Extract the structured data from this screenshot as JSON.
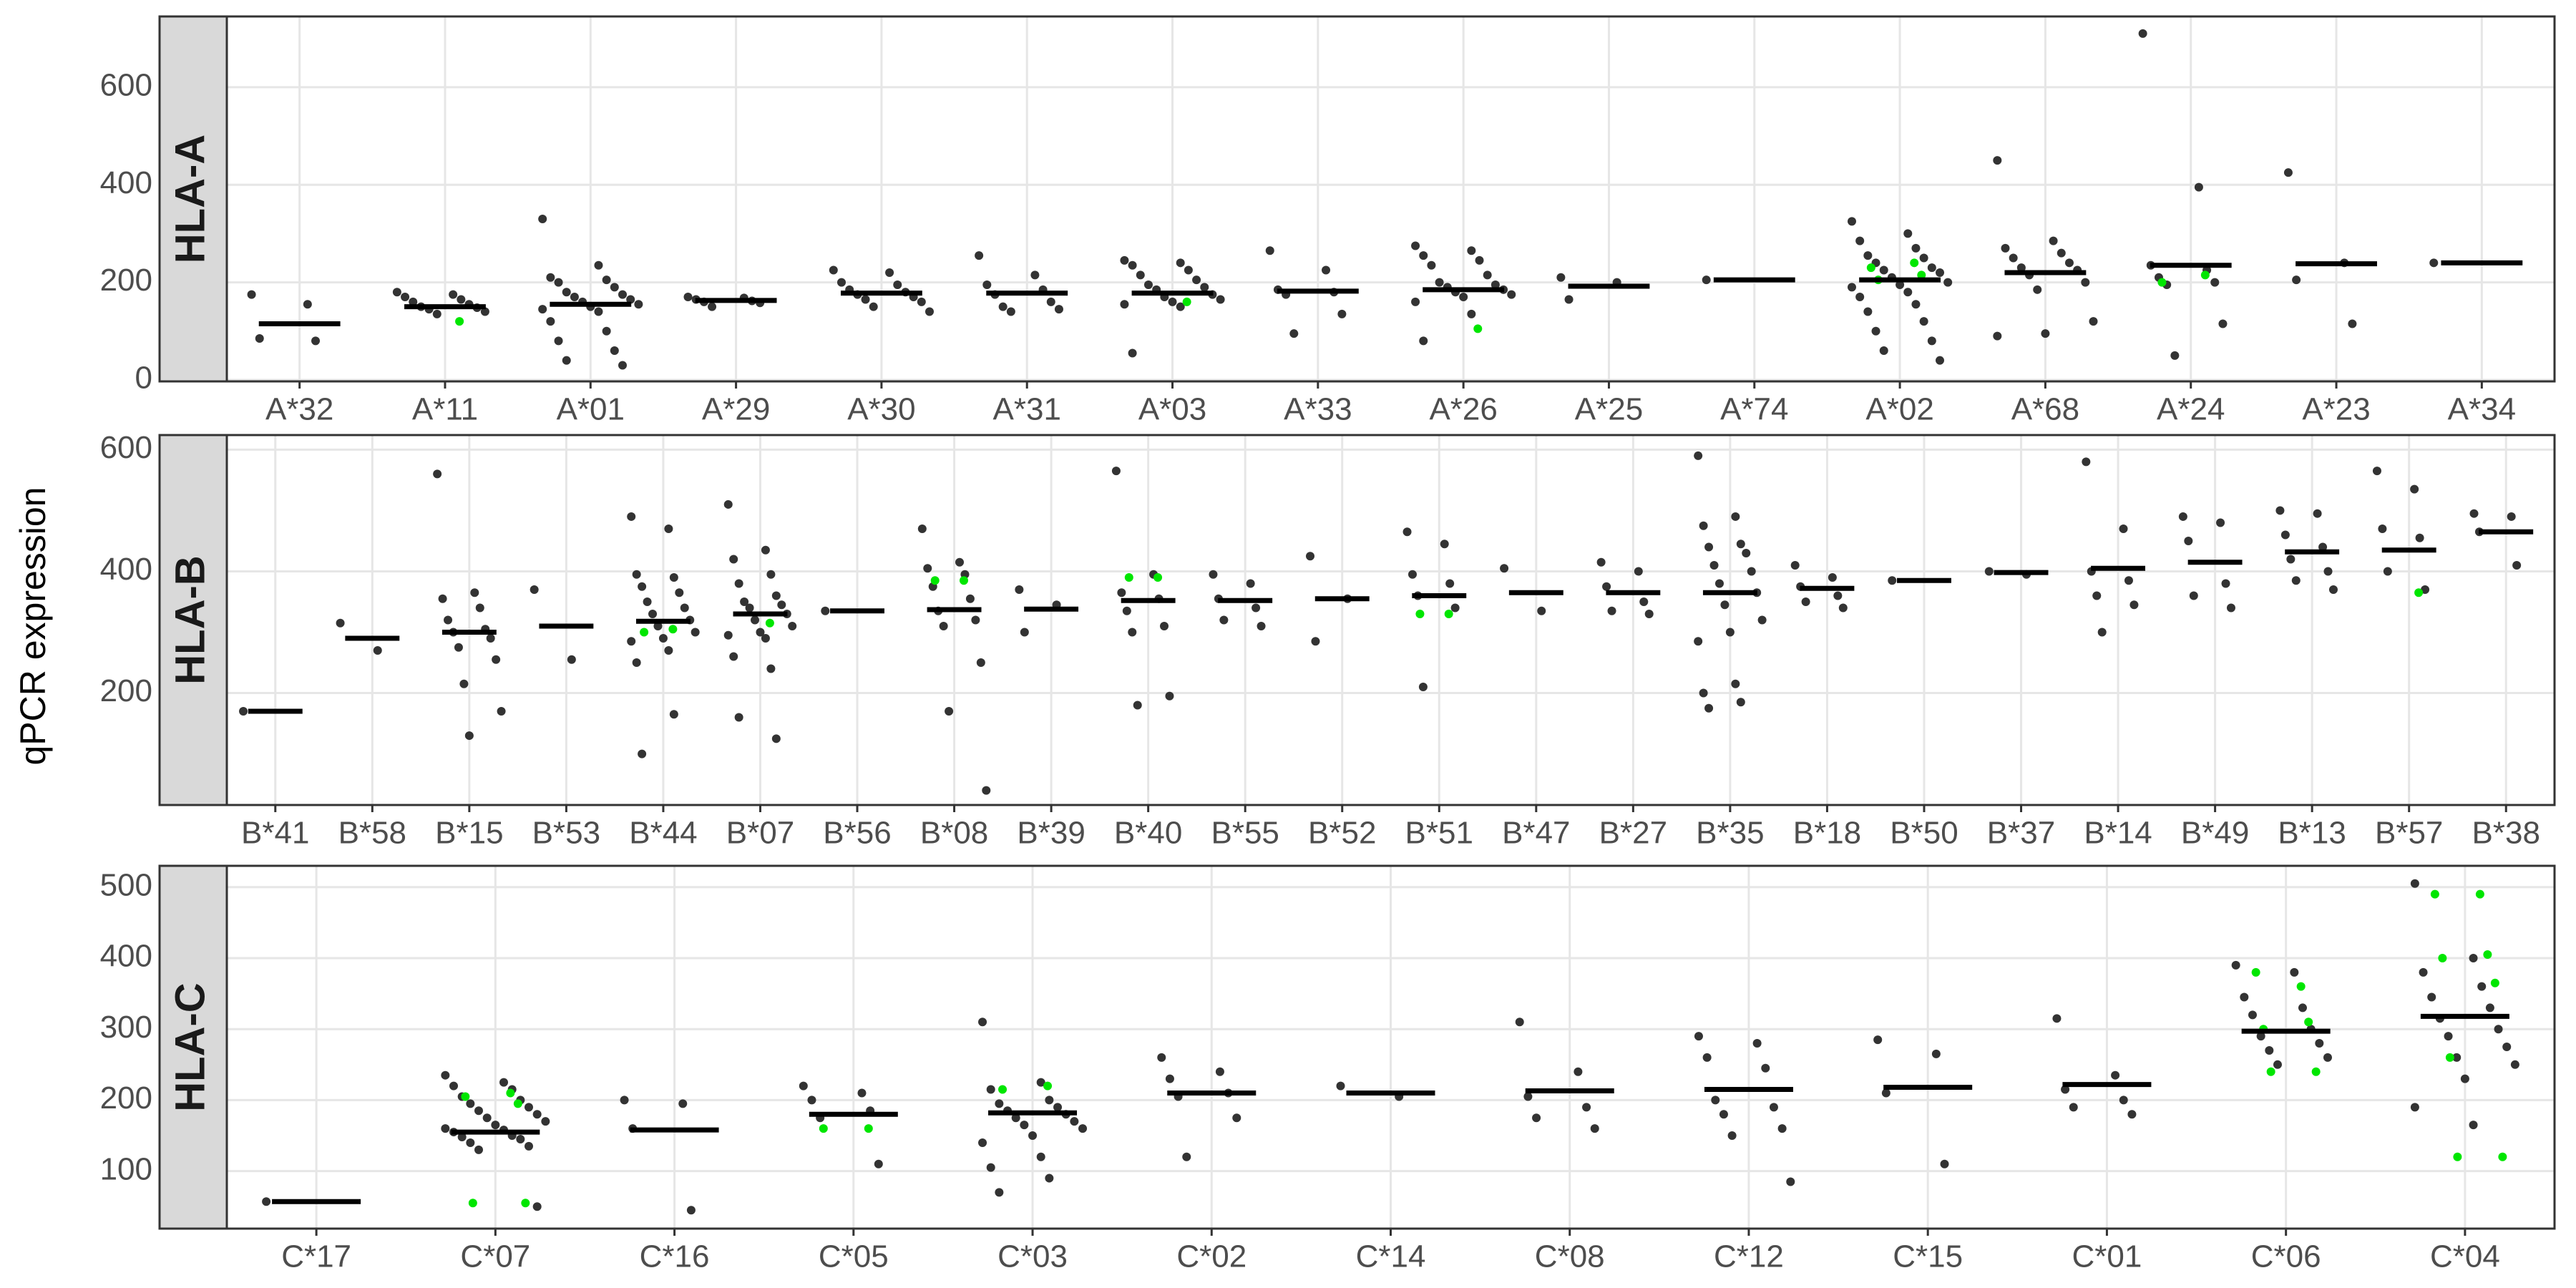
{
  "y_label": "qPCR expression",
  "chart_data": [
    {
      "type": "strip",
      "facet_label": "HLA-A",
      "categories": [
        "A*32",
        "A*11",
        "A*01",
        "A*29",
        "A*30",
        "A*31",
        "A*03",
        "A*33",
        "A*26",
        "A*25",
        "A*74",
        "A*02",
        "A*68",
        "A*24",
        "A*23",
        "A*34"
      ],
      "medians": [
        115,
        150,
        155,
        163,
        178,
        178,
        178,
        182,
        185,
        192,
        205,
        205,
        220,
        235,
        238,
        240
      ],
      "points": [
        [
          175,
          155,
          85,
          80
        ],
        [
          180,
          175,
          170,
          165,
          160,
          155,
          150,
          148,
          145,
          140,
          135
        ],
        [
          330,
          235,
          210,
          205,
          200,
          190,
          180,
          175,
          170,
          165,
          160,
          155,
          150,
          145,
          140,
          120,
          100,
          80,
          60,
          40,
          30
        ],
        [
          170,
          168,
          165,
          162,
          160,
          158,
          150
        ],
        [
          225,
          220,
          200,
          195,
          185,
          180,
          175,
          170,
          165,
          160,
          150,
          140
        ],
        [
          255,
          215,
          195,
          185,
          175,
          160,
          150,
          145,
          140
        ],
        [
          245,
          240,
          235,
          225,
          215,
          205,
          195,
          190,
          185,
          175,
          170,
          165,
          160,
          155,
          150,
          55
        ],
        [
          265,
          225,
          185,
          180,
          175,
          135,
          95
        ],
        [
          275,
          265,
          255,
          245,
          235,
          215,
          200,
          195,
          190,
          185,
          180,
          175,
          170,
          160,
          135,
          80
        ],
        [
          210,
          200,
          165
        ],
        [
          205
        ],
        [
          325,
          300,
          285,
          270,
          255,
          250,
          240,
          230,
          225,
          220,
          210,
          200,
          195,
          190,
          180,
          170,
          155,
          140,
          120,
          100,
          80,
          60,
          40
        ],
        [
          450,
          285,
          270,
          260,
          250,
          240,
          230,
          225,
          215,
          200,
          185,
          120,
          95,
          90
        ],
        [
          710,
          395,
          235,
          225,
          210,
          200,
          195,
          115,
          50
        ],
        [
          425,
          240,
          205,
          115
        ],
        [
          240
        ]
      ],
      "highlight_points": [
        [],
        [
          120
        ],
        [],
        [],
        [],
        [],
        [
          160
        ],
        [],
        [
          105
        ],
        [],
        [],
        [
          240,
          230,
          215,
          205
        ],
        [],
        [
          215,
          200
        ],
        [],
        []
      ],
      "ylim": [
        -3,
        745
      ],
      "yticks": [
        0,
        200,
        400,
        600
      ],
      "point_color": "#333333",
      "highlight_color": "#00e600",
      "median_color": "#000000",
      "grid": true
    },
    {
      "type": "strip",
      "facet_label": "HLA-B",
      "categories": [
        "B*41",
        "B*58",
        "B*15",
        "B*53",
        "B*44",
        "B*07",
        "B*56",
        "B*08",
        "B*39",
        "B*40",
        "B*55",
        "B*52",
        "B*51",
        "B*47",
        "B*27",
        "B*35",
        "B*18",
        "B*50",
        "B*37",
        "B*14",
        "B*49",
        "B*13",
        "B*57",
        "B*38"
      ],
      "medians": [
        170,
        290,
        300,
        310,
        318,
        330,
        335,
        337,
        338,
        352,
        352,
        355,
        360,
        365,
        365,
        365,
        372,
        385,
        398,
        405,
        415,
        432,
        435,
        465
      ],
      "points": [
        [
          170
        ],
        [
          315,
          270
        ],
        [
          560,
          365,
          355,
          340,
          320,
          305,
          300,
          290,
          275,
          255,
          215,
          170,
          130
        ],
        [
          370,
          255
        ],
        [
          490,
          470,
          395,
          390,
          375,
          365,
          350,
          340,
          330,
          320,
          310,
          300,
          290,
          285,
          270,
          250,
          165,
          100
        ],
        [
          510,
          435,
          420,
          395,
          380,
          360,
          350,
          345,
          340,
          330,
          320,
          310,
          300,
          295,
          290,
          260,
          240,
          160,
          125
        ],
        [
          335
        ],
        [
          470,
          415,
          405,
          395,
          375,
          355,
          335,
          320,
          310,
          250,
          170,
          40
        ],
        [
          370,
          345,
          300
        ],
        [
          565,
          395,
          365,
          355,
          335,
          310,
          300,
          195,
          180
        ],
        [
          395,
          380,
          355,
          340,
          320,
          310
        ],
        [
          425,
          355,
          285
        ],
        [
          465,
          445,
          395,
          380,
          360,
          340,
          210
        ],
        [
          405,
          335
        ],
        [
          415,
          400,
          375,
          350,
          335,
          330
        ],
        [
          590,
          490,
          475,
          445,
          440,
          430,
          410,
          400,
          380,
          365,
          345,
          320,
          300,
          285,
          215,
          200,
          185,
          175
        ],
        [
          410,
          390,
          375,
          360,
          350,
          340
        ],
        [
          385
        ],
        [
          400,
          395
        ],
        [
          580,
          470,
          400,
          385,
          360,
          345,
          300
        ],
        [
          490,
          480,
          450,
          380,
          360,
          340
        ],
        [
          500,
          495,
          460,
          440,
          420,
          400,
          385,
          370
        ],
        [
          565,
          535,
          470,
          455,
          400,
          370
        ],
        [
          495,
          490,
          465,
          410
        ]
      ],
      "highlight_points": [
        [],
        [],
        [],
        [],
        [
          305,
          300
        ],
        [
          315
        ],
        [],
        [
          385,
          385
        ],
        [],
        [
          390,
          390
        ],
        [],
        [],
        [
          330,
          330
        ],
        [],
        [],
        [],
        [],
        [],
        [],
        [],
        [],
        [],
        [
          365
        ],
        []
      ],
      "ylim": [
        16,
        624
      ],
      "yticks": [
        200,
        400,
        600
      ],
      "point_color": "#333333",
      "highlight_color": "#00e600",
      "median_color": "#000000",
      "grid": true
    },
    {
      "type": "strip",
      "facet_label": "HLA-C",
      "categories": [
        "C*17",
        "C*07",
        "C*16",
        "C*05",
        "C*03",
        "C*02",
        "C*14",
        "C*08",
        "C*12",
        "C*15",
        "C*01",
        "C*06",
        "C*04"
      ],
      "medians": [
        57,
        155,
        158,
        180,
        182,
        210,
        210,
        213,
        215,
        218,
        222,
        297,
        318
      ],
      "points": [
        [
          57
        ],
        [
          235,
          225,
          220,
          215,
          205,
          200,
          195,
          190,
          185,
          180,
          175,
          170,
          165,
          160,
          158,
          155,
          150,
          148,
          145,
          140,
          135,
          130,
          50
        ],
        [
          200,
          195,
          160,
          45
        ],
        [
          220,
          210,
          200,
          185,
          175,
          110
        ],
        [
          310,
          225,
          215,
          200,
          195,
          190,
          185,
          180,
          175,
          170,
          165,
          160,
          150,
          140,
          120,
          105,
          90,
          70
        ],
        [
          260,
          240,
          230,
          210,
          205,
          175,
          120
        ],
        [
          220,
          205
        ],
        [
          310,
          240,
          205,
          190,
          175,
          160
        ],
        [
          290,
          280,
          260,
          245,
          200,
          190,
          180,
          160,
          150,
          85
        ],
        [
          285,
          265,
          210,
          110
        ],
        [
          315,
          235,
          215,
          200,
          190,
          180
        ],
        [
          390,
          380,
          345,
          330,
          320,
          300,
          290,
          280,
          270,
          260,
          250
        ],
        [
          505,
          400,
          380,
          360,
          345,
          330,
          315,
          300,
          290,
          275,
          260,
          250,
          230,
          190,
          165
        ]
      ],
      "highlight_points": [
        [],
        [
          210,
          205,
          195,
          55,
          55
        ],
        [],
        [
          160,
          160
        ],
        [
          220,
          215
        ],
        [],
        [],
        [],
        [],
        [],
        [],
        [
          360,
          380,
          310,
          300,
          240,
          240
        ],
        [
          490,
          490,
          405,
          400,
          365,
          260,
          120,
          120
        ]
      ],
      "ylim": [
        19,
        530
      ],
      "yticks": [
        100,
        200,
        300,
        400,
        500
      ],
      "point_color": "#333333",
      "highlight_color": "#00e600",
      "median_color": "#000000",
      "grid": true
    }
  ]
}
